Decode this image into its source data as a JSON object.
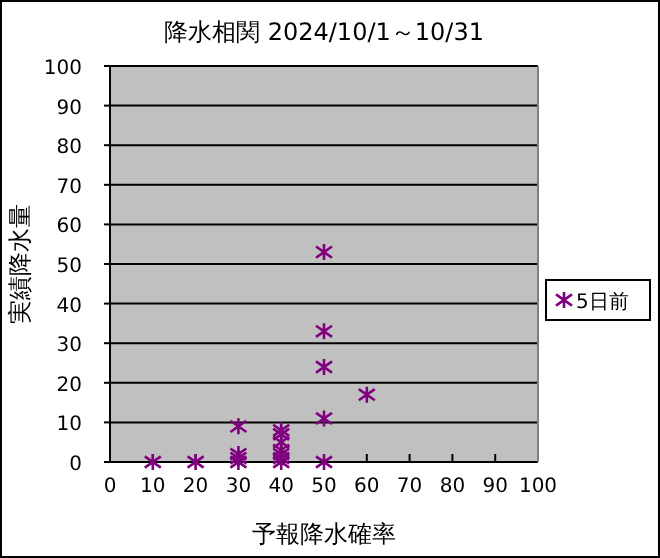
{
  "chart_data": {
    "type": "scatter",
    "title": "降水相関 2024/10/1～10/31",
    "xlabel": "予報降水確率",
    "ylabel": "実績降水量",
    "xlim": [
      0,
      100
    ],
    "xticks": [
      0,
      10,
      20,
      30,
      40,
      50,
      60,
      70,
      80,
      90,
      100
    ],
    "ylim": [
      0,
      100
    ],
    "yticks": [
      0,
      10,
      20,
      30,
      40,
      50,
      60,
      70,
      80,
      90,
      100
    ],
    "grid": "y",
    "legend": "right",
    "marker": "cross",
    "series": [
      {
        "name": "5日前",
        "color": "#800080",
        "x": [
          10,
          20,
          30,
          30,
          30,
          30,
          40,
          40,
          40,
          40,
          40,
          40,
          40,
          50,
          50,
          50,
          50,
          50,
          60
        ],
        "values": [
          0,
          0,
          0,
          1,
          2,
          9,
          0,
          1,
          2,
          3,
          5,
          7,
          8,
          0,
          11,
          24,
          33,
          53,
          17
        ]
      }
    ]
  }
}
